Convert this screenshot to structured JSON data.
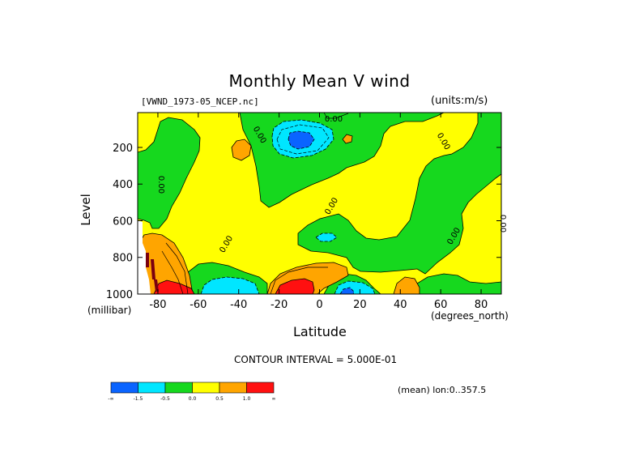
{
  "chart_data": {
    "type": "contour",
    "title": "Monthly Mean V wind",
    "dataset_label": "[VWND_1973-05_NCEP.nc]",
    "units_label": "(units:m/s)",
    "ylabel": "Level",
    "yunits": "(millibar)",
    "xlabel": "Latitude",
    "xunits": "(degrees_north)",
    "contour_interval_text": "CONTOUR INTERVAL = 5.000E-01",
    "mean_text": "(mean) lon:0..357.5",
    "xlim": [
      -90,
      90
    ],
    "ylim": [
      1000,
      10
    ],
    "x_ticks": [
      "-80",
      "-60",
      "-40",
      "-20",
      "0",
      "20",
      "40",
      "60",
      "80"
    ],
    "x_tick_values": [
      -80,
      -60,
      -40,
      -20,
      0,
      20,
      40,
      60,
      80
    ],
    "y_ticks": [
      "200",
      "400",
      "600",
      "800",
      "1000"
    ],
    "y_tick_values": [
      200,
      400,
      600,
      800,
      1000
    ],
    "contour_labels": [
      "0.00",
      "0.00",
      "0.00",
      "0.00",
      "0.00",
      "0.00",
      "0.00",
      "0.00",
      "0.00"
    ],
    "colorbar": {
      "labels": [
        "-∞",
        "-1.5",
        "-0.5",
        "0.0",
        "0.5",
        "1.0",
        "∞"
      ],
      "colors": [
        "#0a64ff",
        "#00e6ff",
        "#16d81e",
        "#ffff00",
        "#ffa500",
        "#ff1010"
      ]
    },
    "regions": [
      {
        "value_range": "< -1.5",
        "color": "#0a64ff",
        "near": [
          [
            -10,
            150
          ],
          [
            10,
            980
          ]
        ]
      },
      {
        "value_range": "-1.5 to -0.5",
        "color": "#00e6ff",
        "near": [
          [
            -12,
            150
          ],
          [
            -42,
            960
          ],
          [
            12,
            980
          ],
          [
            5,
            700
          ]
        ]
      },
      {
        "value_range": "-0.5 to 0.0",
        "color": "#16d81e",
        "near": [
          [
            -85,
            300
          ],
          [
            -53,
            200
          ],
          [
            -10,
            170
          ],
          [
            0,
            650
          ],
          [
            70,
            380
          ]
        ]
      },
      {
        "value_range": "0.0 to 0.5",
        "color": "#ffff00",
        "near": [
          [
            -35,
            400
          ],
          [
            25,
            400
          ],
          [
            60,
            700
          ]
        ]
      },
      {
        "value_range": "0.5 to 1.0",
        "color": "#ffa500",
        "near": [
          [
            -40,
            200
          ],
          [
            -70,
            850
          ],
          [
            -20,
            880
          ],
          [
            40,
            950
          ]
        ]
      },
      {
        "value_range": "> 1.0",
        "color": "#ff1010",
        "near": [
          [
            -15,
            960
          ],
          [
            -70,
            985
          ]
        ]
      }
    ]
  }
}
